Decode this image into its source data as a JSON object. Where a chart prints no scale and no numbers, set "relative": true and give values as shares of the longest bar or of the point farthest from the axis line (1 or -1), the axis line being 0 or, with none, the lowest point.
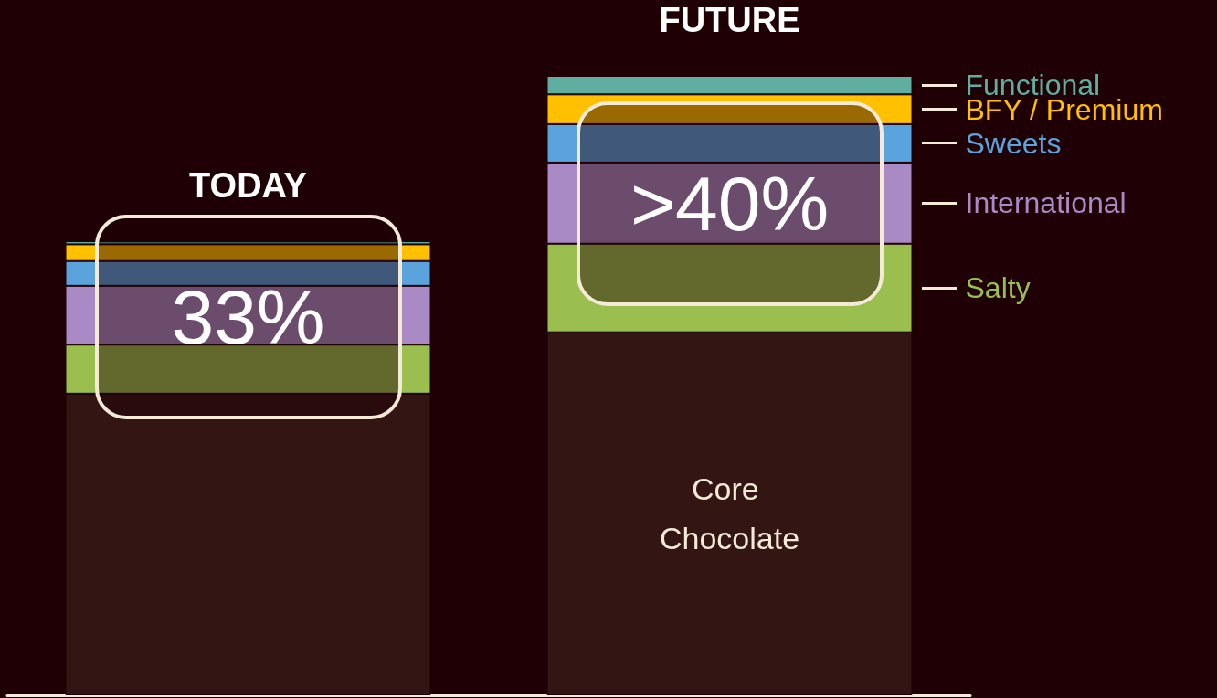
{
  "chart_data": {
    "type": "bar",
    "stacked": true,
    "relative": true,
    "categories": [
      "TODAY",
      "FUTURE"
    ],
    "series": [
      {
        "name": "Core Chocolate",
        "color": "#331514",
        "values": [
          0.487,
          0.586
        ]
      },
      {
        "name": "Salty",
        "color": "#9bbf4f",
        "values": [
          0.079,
          0.143
        ]
      },
      {
        "name": "International",
        "color": "#a98ac4",
        "values": [
          0.095,
          0.131
        ]
      },
      {
        "name": "Sweets",
        "color": "#5ba3dc",
        "values": [
          0.04,
          0.062
        ]
      },
      {
        "name": "BFY / Premium",
        "color": "#ffc000",
        "values": [
          0.027,
          0.048
        ]
      },
      {
        "name": "Functional",
        "color": "#5fae9f",
        "values": [
          0.005,
          0.03
        ]
      }
    ],
    "annotations": [
      "33%",
      ">40%"
    ]
  }
}
